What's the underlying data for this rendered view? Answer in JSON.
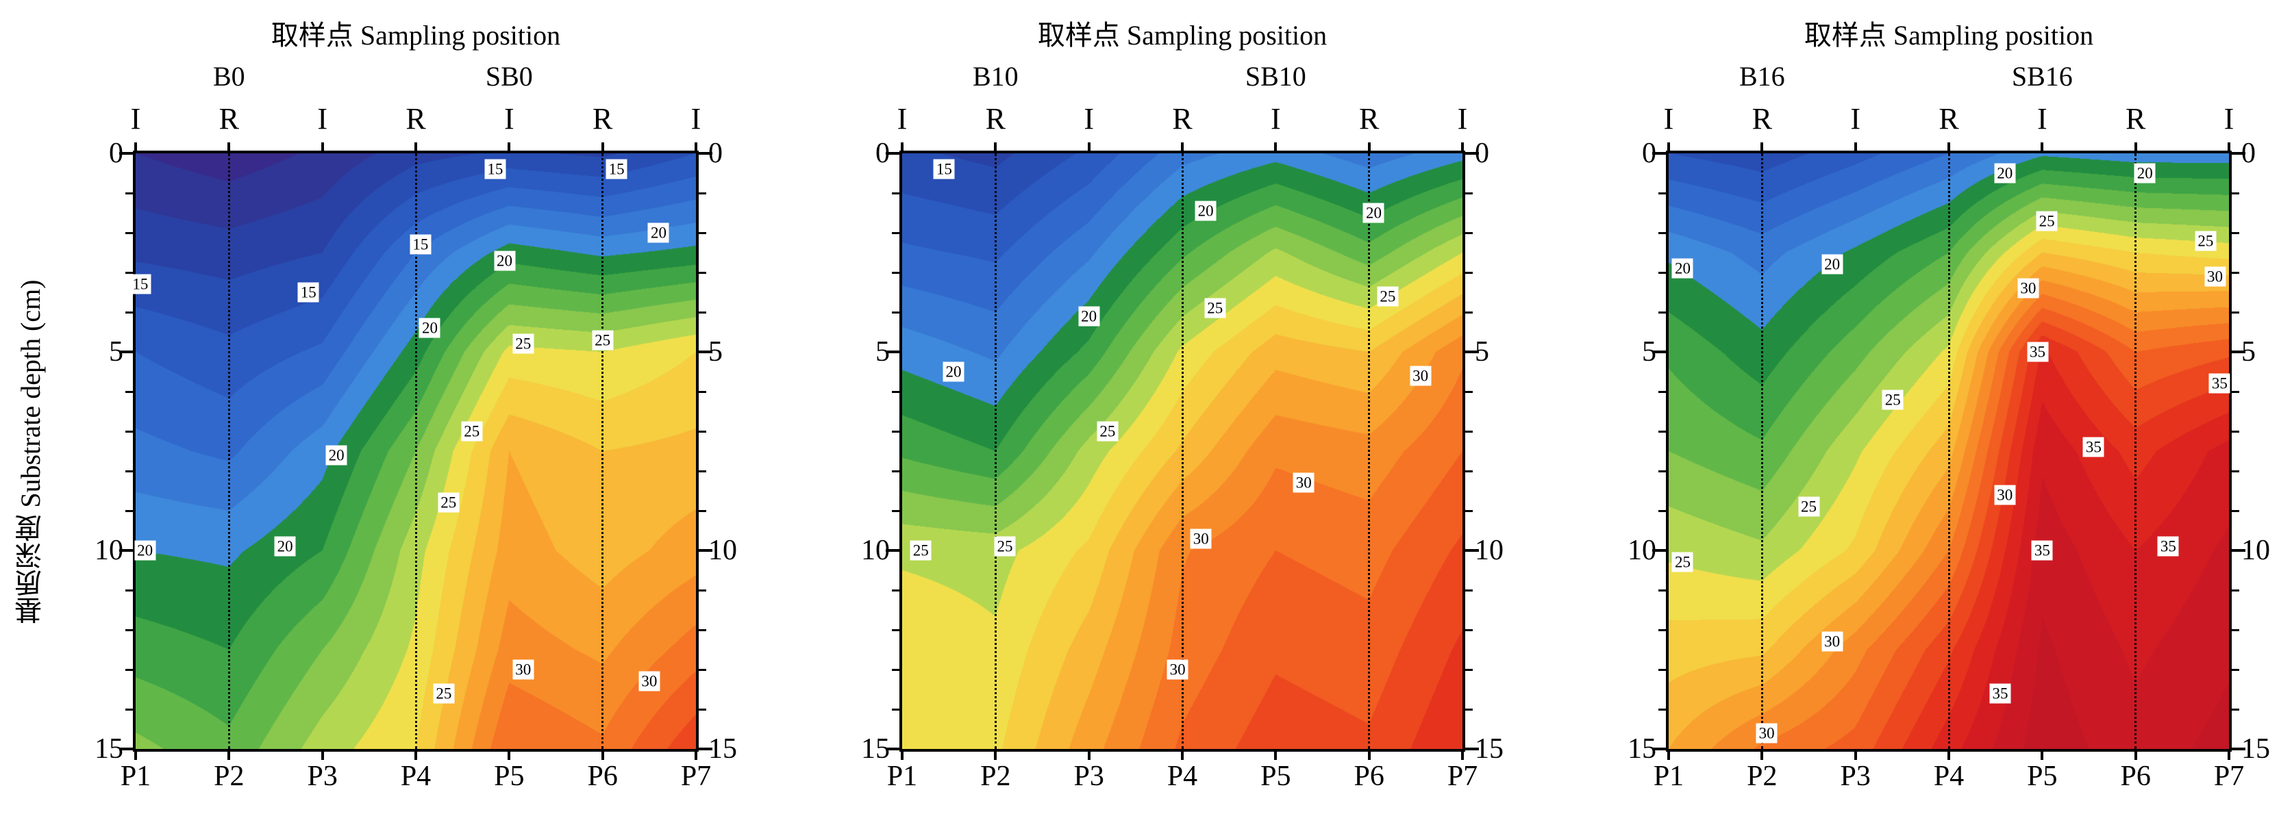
{
  "figure": {
    "y_axis_label": "基质深度 Substrate depth (cm)"
  },
  "colormap": {
    "stops": [
      [
        12,
        "#3a2383"
      ],
      [
        13,
        "#333090"
      ],
      [
        14,
        "#2c3b9c"
      ],
      [
        15,
        "#2646ab"
      ],
      [
        16,
        "#2953ba"
      ],
      [
        17,
        "#2d61c6"
      ],
      [
        18,
        "#336fd0"
      ],
      [
        19,
        "#3a80d8"
      ],
      [
        19.99,
        "#4192de"
      ],
      [
        20,
        "#157f3d"
      ],
      [
        21,
        "#2f9a43"
      ],
      [
        22,
        "#4fae47"
      ],
      [
        23,
        "#74bf4b"
      ],
      [
        24,
        "#9ecf4f"
      ],
      [
        24.99,
        "#c9df53"
      ],
      [
        25,
        "#ece550"
      ],
      [
        26,
        "#f4d845"
      ],
      [
        27,
        "#f8c33b"
      ],
      [
        28,
        "#f9ad32"
      ],
      [
        29,
        "#f9962b"
      ],
      [
        30,
        "#f77f26"
      ],
      [
        31,
        "#f46823"
      ],
      [
        32,
        "#ef5120"
      ],
      [
        33,
        "#e93c1e"
      ],
      [
        34,
        "#e12a1d"
      ],
      [
        35,
        "#d91e20"
      ],
      [
        36,
        "#cd1a23"
      ],
      [
        38,
        "#bf1627"
      ]
    ]
  },
  "chart_data": [
    {
      "type": "heatmap",
      "title": "取样点 Sampling position",
      "xlabel": "取样点 Sampling position",
      "ylabel": "基质深度 Substrate depth (cm)",
      "group_labels": [
        {
          "text": "B0",
          "x": 2
        },
        {
          "text": "SB0",
          "x": 5
        }
      ],
      "top_axis_markers": [
        {
          "text": "I",
          "x": 1
        },
        {
          "text": "R",
          "x": 2
        },
        {
          "text": "I",
          "x": 3
        },
        {
          "text": "R",
          "x": 4
        },
        {
          "text": "I",
          "x": 5
        },
        {
          "text": "R",
          "x": 6
        },
        {
          "text": "I",
          "x": 7
        }
      ],
      "x": [
        1,
        2,
        3,
        4,
        5,
        6,
        7
      ],
      "x_tick_labels": [
        "P1",
        "P2",
        "P3",
        "P4",
        "P5",
        "P6",
        "P7"
      ],
      "y_ticks": [
        0,
        5,
        10,
        15
      ],
      "y_tick_labels": [
        "0",
        "5",
        "10",
        "15"
      ],
      "ylim": [
        0,
        15
      ],
      "depths_cm": [
        0,
        2.5,
        5,
        7.5,
        10,
        12.5,
        15
      ],
      "values": [
        [
          13.0,
          12.4,
          13.2,
          14.6,
          15.2,
          14.8,
          16.0
        ],
        [
          14.8,
          14.5,
          15.0,
          18.0,
          20.5,
          19.8,
          20.3
        ],
        [
          17.0,
          16.3,
          17.2,
          20.5,
          25.3,
          25.0,
          26.0
        ],
        [
          18.3,
          17.8,
          19.6,
          23.0,
          28.0,
          27.0,
          27.3
        ],
        [
          20.0,
          19.8,
          21.0,
          24.6,
          28.5,
          27.5,
          28.5
        ],
        [
          21.5,
          21.0,
          23.0,
          25.2,
          29.5,
          28.8,
          30.5
        ],
        [
          23.3,
          22.3,
          24.5,
          26.0,
          31.0,
          30.2,
          32.8
        ]
      ],
      "contour_interval": 1,
      "labeled_levels": [
        15,
        20,
        25,
        30
      ],
      "dotted_guides_x": [
        2,
        4,
        6
      ],
      "contour_labels": [
        {
          "v": 15,
          "x": 1.05,
          "y": 3.3
        },
        {
          "v": 15,
          "x": 2.85,
          "y": 3.5
        },
        {
          "v": 15,
          "x": 4.05,
          "y": 2.3
        },
        {
          "v": 15,
          "x": 4.85,
          "y": 0.4
        },
        {
          "v": 15,
          "x": 6.15,
          "y": 0.4
        },
        {
          "v": 20,
          "x": 4.15,
          "y": 4.4
        },
        {
          "v": 20,
          "x": 4.95,
          "y": 2.7
        },
        {
          "v": 20,
          "x": 6.6,
          "y": 2.0
        },
        {
          "v": 25,
          "x": 5.15,
          "y": 4.8
        },
        {
          "v": 25,
          "x": 6.0,
          "y": 4.7
        },
        {
          "v": 20,
          "x": 3.15,
          "y": 7.6
        },
        {
          "v": 25,
          "x": 4.6,
          "y": 7.0
        },
        {
          "v": 25,
          "x": 4.35,
          "y": 8.8
        },
        {
          "v": 20,
          "x": 1.1,
          "y": 10.0
        },
        {
          "v": 20,
          "x": 2.6,
          "y": 9.9
        },
        {
          "v": 25,
          "x": 4.3,
          "y": 13.6
        },
        {
          "v": 30,
          "x": 5.15,
          "y": 13.0
        },
        {
          "v": 30,
          "x": 6.5,
          "y": 13.3
        }
      ]
    },
    {
      "type": "heatmap",
      "title": "取样点 Sampling position",
      "xlabel": "取样点 Sampling position",
      "ylabel": "基质深度 Substrate depth (cm)",
      "group_labels": [
        {
          "text": "B10",
          "x": 2
        },
        {
          "text": "SB10",
          "x": 5
        }
      ],
      "top_axis_markers": [
        {
          "text": "I",
          "x": 1
        },
        {
          "text": "R",
          "x": 2
        },
        {
          "text": "I",
          "x": 3
        },
        {
          "text": "R",
          "x": 4
        },
        {
          "text": "I",
          "x": 5
        },
        {
          "text": "R",
          "x": 6
        },
        {
          "text": "I",
          "x": 7
        }
      ],
      "x": [
        1,
        2,
        3,
        4,
        5,
        6,
        7
      ],
      "x_tick_labels": [
        "P1",
        "P2",
        "P3",
        "P4",
        "P5",
        "P6",
        "P7"
      ],
      "y_ticks": [
        0,
        5,
        10,
        15
      ],
      "y_tick_labels": [
        "0",
        "5",
        "10",
        "15"
      ],
      "ylim": [
        0,
        15
      ],
      "depths_cm": [
        0,
        2.5,
        5,
        7.5,
        10,
        12.5,
        15
      ],
      "values": [
        [
          15.2,
          14.7,
          16.2,
          18.6,
          19.6,
          18.4,
          19.6
        ],
        [
          17.2,
          16.8,
          18.8,
          21.8,
          24.2,
          22.4,
          25.0
        ],
        [
          19.6,
          18.8,
          21.3,
          25.2,
          27.6,
          27.0,
          29.8
        ],
        [
          21.8,
          21.0,
          24.4,
          27.2,
          29.8,
          29.4,
          31.0
        ],
        [
          24.8,
          24.6,
          26.2,
          29.9,
          31.0,
          30.6,
          32.2
        ],
        [
          25.8,
          25.2,
          27.5,
          30.4,
          31.8,
          31.4,
          33.2
        ],
        [
          26.0,
          25.8,
          28.6,
          31.2,
          32.6,
          32.2,
          34.0
        ]
      ],
      "contour_interval": 1,
      "labeled_levels": [
        15,
        20,
        25,
        30
      ],
      "dotted_guides_x": [
        2,
        4,
        6
      ],
      "contour_labels": [
        {
          "v": 15,
          "x": 1.45,
          "y": 0.4
        },
        {
          "v": 20,
          "x": 4.25,
          "y": 1.45
        },
        {
          "v": 20,
          "x": 6.05,
          "y": 1.5
        },
        {
          "v": 20,
          "x": 3.0,
          "y": 4.1
        },
        {
          "v": 25,
          "x": 4.35,
          "y": 3.9
        },
        {
          "v": 25,
          "x": 6.2,
          "y": 3.6
        },
        {
          "v": 20,
          "x": 1.55,
          "y": 5.5
        },
        {
          "v": 30,
          "x": 6.55,
          "y": 5.6
        },
        {
          "v": 25,
          "x": 3.2,
          "y": 7.0
        },
        {
          "v": 30,
          "x": 5.3,
          "y": 8.3
        },
        {
          "v": 30,
          "x": 4.2,
          "y": 9.7
        },
        {
          "v": 25,
          "x": 1.2,
          "y": 10.0
        },
        {
          "v": 25,
          "x": 2.1,
          "y": 9.9
        },
        {
          "v": 30,
          "x": 3.95,
          "y": 13.0
        }
      ]
    },
    {
      "type": "heatmap",
      "title": "取样点 Sampling position",
      "xlabel": "取样点 Sampling position",
      "ylabel": "基质深度 Substrate depth (cm)",
      "group_labels": [
        {
          "text": "B16",
          "x": 2
        },
        {
          "text": "SB16",
          "x": 5
        }
      ],
      "top_axis_markers": [
        {
          "text": "I",
          "x": 1
        },
        {
          "text": "R",
          "x": 2
        },
        {
          "text": "I",
          "x": 3
        },
        {
          "text": "R",
          "x": 4
        },
        {
          "text": "I",
          "x": 5
        },
        {
          "text": "R",
          "x": 6
        },
        {
          "text": "I",
          "x": 7
        }
      ],
      "x": [
        1,
        2,
        3,
        4,
        5,
        6,
        7
      ],
      "x_tick_labels": [
        "P1",
        "P2",
        "P3",
        "P4",
        "P5",
        "P6",
        "P7"
      ],
      "y_ticks": [
        0,
        5,
        10,
        15
      ],
      "y_tick_labels": [
        "0",
        "5",
        "10",
        "15"
      ],
      "ylim": [
        0,
        15
      ],
      "depths_cm": [
        0,
        2.5,
        5,
        7.5,
        10,
        12.5,
        15
      ],
      "values": [
        [
          16.0,
          15.4,
          16.6,
          18.0,
          19.8,
          19.4,
          19.4
        ],
        [
          19.8,
          18.6,
          20.2,
          22.0,
          27.0,
          26.0,
          25.6
        ],
        [
          21.8,
          20.4,
          22.6,
          25.2,
          34.2,
          31.0,
          31.8
        ],
        [
          23.0,
          22.2,
          24.8,
          27.6,
          35.8,
          33.6,
          35.4
        ],
        [
          24.8,
          24.2,
          26.2,
          30.0,
          36.6,
          35.0,
          36.2
        ],
        [
          26.5,
          26.8,
          29.6,
          32.8,
          37.2,
          35.8,
          36.8
        ],
        [
          28.0,
          30.2,
          31.4,
          34.6,
          37.6,
          36.4,
          37.4
        ]
      ],
      "contour_interval": 1,
      "labeled_levels": [
        20,
        25,
        30,
        35
      ],
      "dotted_guides_x": [
        2,
        4,
        6
      ],
      "contour_labels": [
        {
          "v": 20,
          "x": 4.6,
          "y": 0.5
        },
        {
          "v": 20,
          "x": 6.1,
          "y": 0.5
        },
        {
          "v": 25,
          "x": 5.05,
          "y": 1.7
        },
        {
          "v": 25,
          "x": 6.75,
          "y": 2.2
        },
        {
          "v": 20,
          "x": 1.15,
          "y": 2.9
        },
        {
          "v": 20,
          "x": 2.75,
          "y": 2.8
        },
        {
          "v": 30,
          "x": 4.85,
          "y": 3.4
        },
        {
          "v": 30,
          "x": 6.85,
          "y": 3.1
        },
        {
          "v": 35,
          "x": 4.95,
          "y": 5.0
        },
        {
          "v": 35,
          "x": 6.9,
          "y": 5.8
        },
        {
          "v": 25,
          "x": 3.4,
          "y": 6.2
        },
        {
          "v": 35,
          "x": 5.55,
          "y": 7.4
        },
        {
          "v": 30,
          "x": 4.6,
          "y": 8.6
        },
        {
          "v": 25,
          "x": 2.5,
          "y": 8.9
        },
        {
          "v": 25,
          "x": 1.15,
          "y": 10.3
        },
        {
          "v": 35,
          "x": 5.0,
          "y": 10.0
        },
        {
          "v": 35,
          "x": 6.35,
          "y": 9.9
        },
        {
          "v": 30,
          "x": 2.75,
          "y": 12.3
        },
        {
          "v": 35,
          "x": 4.55,
          "y": 13.6
        },
        {
          "v": 30,
          "x": 2.05,
          "y": 14.6
        }
      ]
    }
  ]
}
